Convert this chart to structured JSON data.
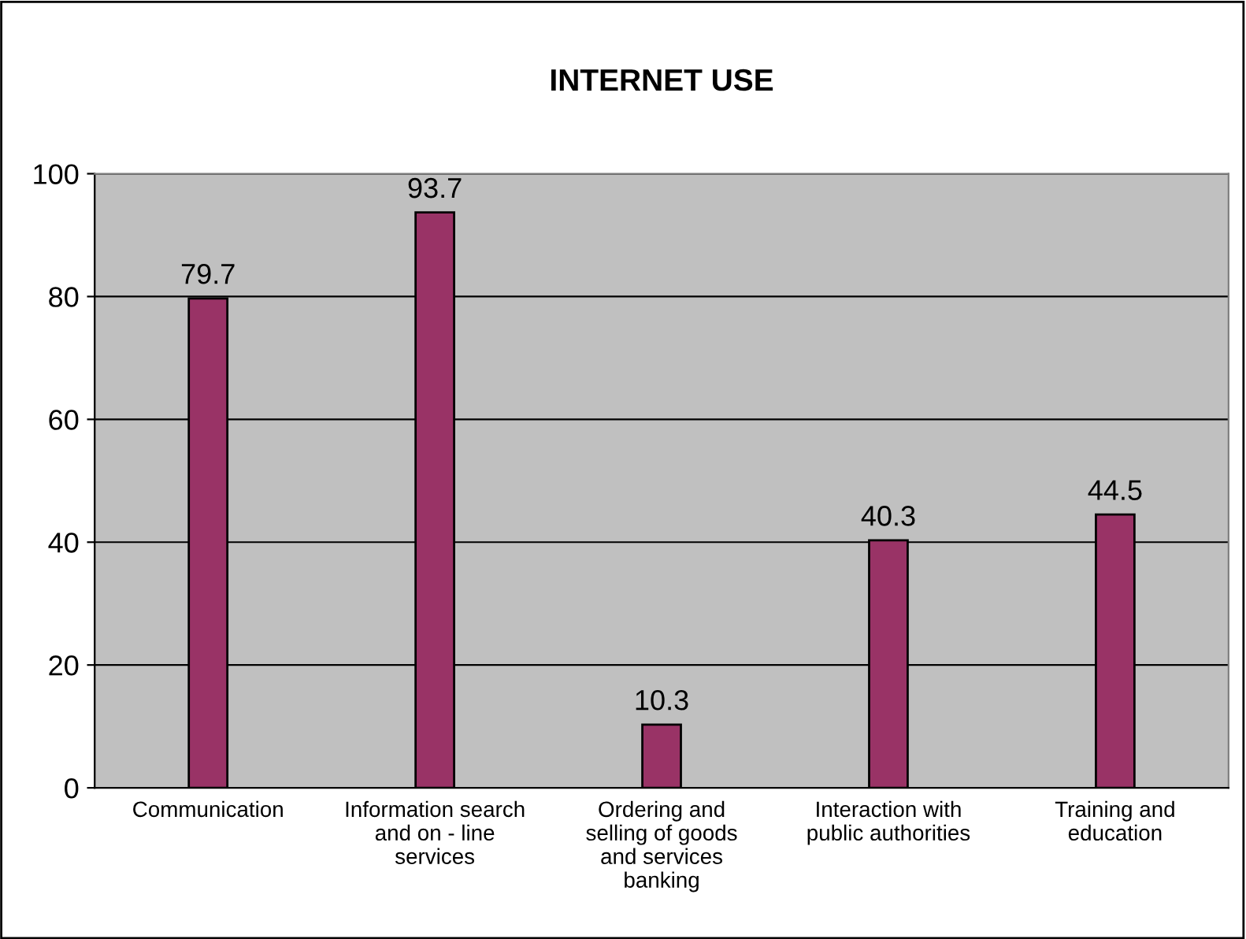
{
  "chart_data": {
    "type": "bar",
    "title": "INTERNET USE",
    "categories": [
      "Communication",
      "Information search\nand on - line\nservices",
      "Ordering and\nselling of goods\nand services\nbanking",
      "Interaction with\npublic authorities",
      "Training and\neducation"
    ],
    "values": [
      79.7,
      93.7,
      10.3,
      40.3,
      44.5
    ],
    "color": "#993366",
    "ylim": [
      0,
      100
    ],
    "yticks": [
      0,
      20,
      40,
      60,
      80,
      100
    ],
    "grid": "y",
    "data_labels": true
  }
}
